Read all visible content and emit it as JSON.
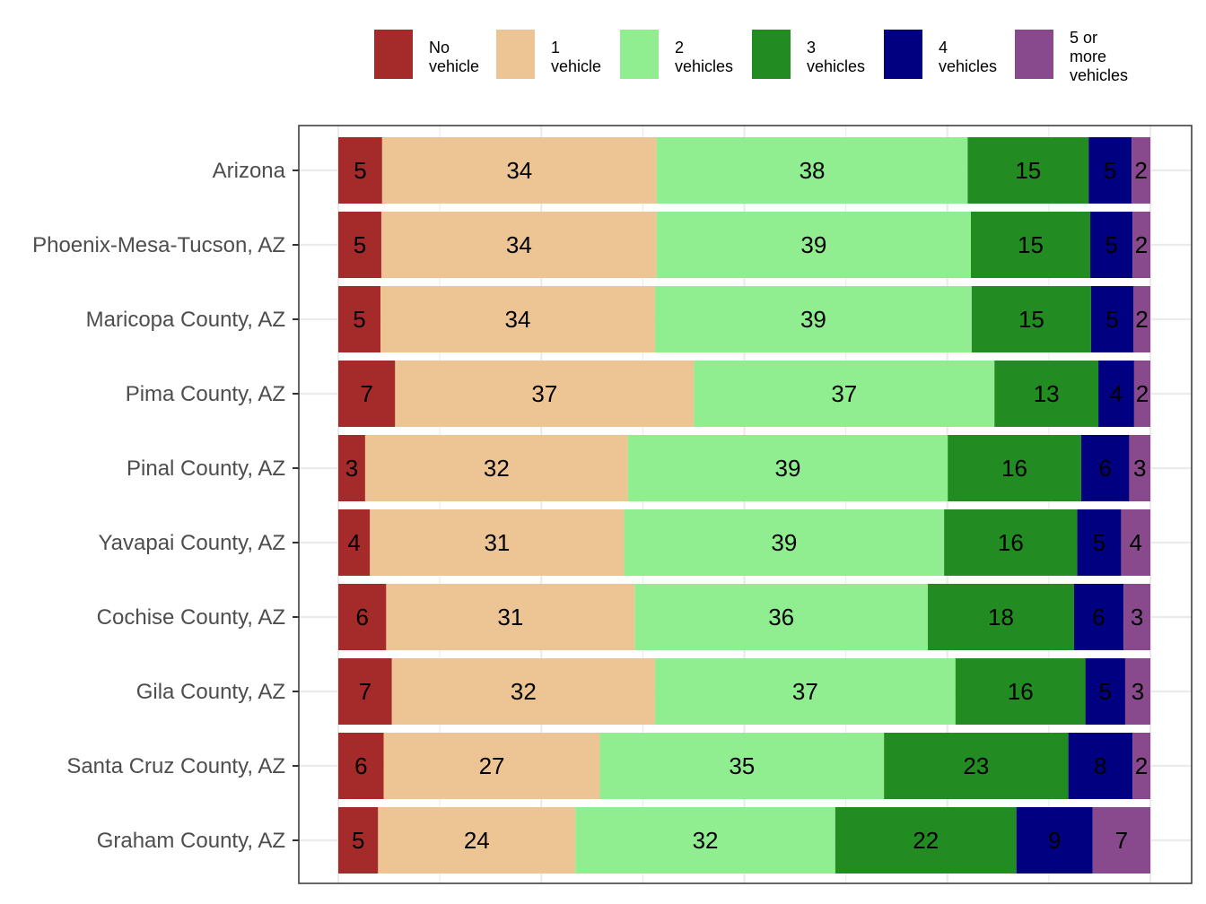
{
  "chart_data": {
    "type": "bar",
    "orientation": "horizontal",
    "stacked": true,
    "normalized": true,
    "categories": [
      "Arizona",
      "Phoenix-Mesa-Tucson, AZ",
      "Maricopa County, AZ",
      "Pima County, AZ",
      "Pinal County, AZ",
      "Yavapai County, AZ",
      "Cochise County, AZ",
      "Gila County, AZ",
      "Santa Cruz County, AZ",
      "Graham County, AZ"
    ],
    "series": [
      {
        "name": "No vehicle",
        "legend_lines": [
          "No",
          "vehicle"
        ],
        "color": "#A52A2A",
        "values": [
          5.4,
          5.3,
          5.2,
          7,
          3.3,
          3.9,
          5.9,
          6.6,
          5.6,
          4.9
        ]
      },
      {
        "name": "1 vehicle",
        "legend_lines": [
          "1",
          "vehicle"
        ],
        "color": "#EDC594",
        "values": [
          33.8,
          33.9,
          33.8,
          36.8,
          32.3,
          31.3,
          30.6,
          32.4,
          26.6,
          24.3
        ]
      },
      {
        "name": "2 vehicles",
        "legend_lines": [
          "2",
          "vehicles"
        ],
        "color": "#90EE90",
        "values": [
          38.3,
          38.7,
          39,
          37,
          39.3,
          39.4,
          36.1,
          37,
          35,
          32
        ]
      },
      {
        "name": "3 vehicles",
        "legend_lines": [
          "3",
          "vehicles"
        ],
        "color": "#228B22",
        "values": [
          14.9,
          14.7,
          14.7,
          12.8,
          16.4,
          16.4,
          18,
          16,
          22.7,
          22.3
        ]
      },
      {
        "name": "4 vehicles",
        "legend_lines": [
          "4",
          "vehicles"
        ],
        "color": "#000080",
        "values": [
          5.3,
          5.2,
          5.2,
          4.4,
          5.9,
          5.4,
          6.1,
          4.9,
          7.9,
          9.4
        ]
      },
      {
        "name": "5 or more vehicles",
        "legend_lines": [
          "5 or",
          "more",
          "vehicles"
        ],
        "color": "#884A8D",
        "values": [
          2.3,
          2.2,
          2.1,
          2,
          2.6,
          3.6,
          3.3,
          3.1,
          2.2,
          7.1
        ]
      }
    ],
    "xlim": [
      0,
      100
    ],
    "legend_position": "top",
    "grid": true
  }
}
